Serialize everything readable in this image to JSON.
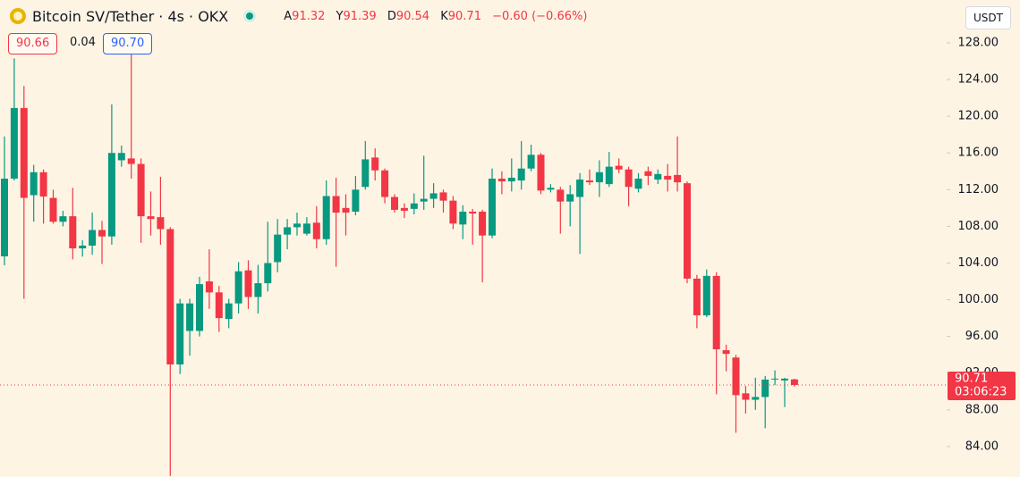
{
  "chart_data": {
    "type": "candlestick",
    "title": "Bitcoin SV/Tether · 4s · OKX",
    "ohlc_labels": [
      "A",
      "Y",
      "D",
      "K"
    ],
    "change": "−0.60 (−0.66%)",
    "sell_price": 90.66,
    "spread": 0.04,
    "buy_price": {
      "value": 90.7,
      "label": "90.70"
    },
    "currency": "USDT",
    "countdown": "03:06:23",
    "up_color": "#089981",
    "down_color": "#f23645",
    "last_price_line": true,
    "ylim": [
      80.68,
      132.67
    ],
    "yticks": [
      {
        "value": 84,
        "label": "84.00"
      },
      {
        "value": 88,
        "label": "88.00"
      },
      {
        "value": 92,
        "label": "92.00"
      },
      {
        "value": 96,
        "label": "96.00"
      },
      {
        "value": 100,
        "label": "100.00"
      },
      {
        "value": 104,
        "label": "104.00"
      },
      {
        "value": 108,
        "label": "108.00"
      },
      {
        "value": 112,
        "label": "112.00"
      },
      {
        "value": 116,
        "label": "116.00"
      },
      {
        "value": 120,
        "label": "120.00"
      },
      {
        "value": 124,
        "label": "124.00"
      },
      {
        "value": 128,
        "label": "128.00"
      }
    ],
    "open": [
      104.73,
      113.2,
      120.9,
      111.4,
      113.9,
      111.1,
      108.5,
      109.1,
      105.6,
      105.9,
      107.6,
      106.9,
      115.2,
      115.4,
      114.8,
      109.1,
      109,
      107.7,
      92.95,
      96.6,
      96.6,
      102,
      100.8,
      97.9,
      99.6,
      103.2,
      100.3,
      101.8,
      104.1,
      107.1,
      107.9,
      107.2,
      108.4,
      106.6,
      111.3,
      110,
      109.6,
      112.3,
      115.5,
      114.1,
      111.2,
      110,
      109.9,
      110.7,
      111,
      111.7,
      110.8,
      108.2,
      109.6,
      109.6,
      107,
      113.2,
      112.9,
      113,
      114.3,
      115.8,
      112,
      112,
      110.7,
      111.2,
      113,
      112.8,
      112.6,
      114.6,
      114.2,
      112.1,
      114,
      113.1,
      113.5,
      113.6,
      112.7,
      102.3,
      98.3,
      102.6,
      94.5,
      93.7,
      89.8,
      89.1,
      89.4,
      91.3,
      91.2,
      91.32
    ],
    "high": [
      117.8,
      126.3,
      123.3,
      114.7,
      114.2,
      112,
      109.7,
      112.2,
      106.5,
      109.5,
      108.6,
      121.3,
      116.8,
      127.1,
      115.4,
      111.8,
      113.4,
      107.9,
      100.1,
      100.1,
      102.5,
      105.5,
      101.5,
      100.1,
      104.1,
      104.3,
      103.8,
      108.5,
      108.8,
      108.8,
      109.5,
      109,
      110.2,
      113,
      113.3,
      111.5,
      113.5,
      117.3,
      116.5,
      114.3,
      111.5,
      110.5,
      111.6,
      115.7,
      112.7,
      112,
      111.3,
      110.3,
      109.9,
      109.8,
      114.3,
      114,
      115.4,
      117.3,
      116.9,
      116,
      112.6,
      112.3,
      112.5,
      113.8,
      114.2,
      115.2,
      116.1,
      115.4,
      114.5,
      113.8,
      114.5,
      114.2,
      114.8,
      117.8,
      112.9,
      102.7,
      103.3,
      103,
      95.1,
      94,
      90.6,
      91.5,
      91.7,
      92.3,
      91.5,
      91.39
    ],
    "low": [
      103.75,
      113,
      100.1,
      108.5,
      108.3,
      108.3,
      108,
      104.4,
      104.7,
      104.9,
      103.9,
      106,
      114.5,
      113.2,
      106.2,
      107,
      106,
      80.8,
      91.9,
      93.9,
      96,
      99,
      96.5,
      96.9,
      98.5,
      99,
      98.5,
      100.9,
      103,
      105.5,
      107,
      107,
      105.6,
      106,
      103.6,
      107,
      109.2,
      112,
      113,
      110.5,
      109.5,
      108.9,
      109.3,
      109.8,
      110,
      109.5,
      107.7,
      106.6,
      106,
      101.9,
      106.7,
      111.5,
      111.8,
      112,
      114,
      111.5,
      111.7,
      107.2,
      108,
      105,
      112.5,
      111.2,
      112.3,
      113.8,
      110.2,
      111.7,
      112.5,
      112.6,
      111.8,
      111.8,
      101.8,
      96.9,
      98.1,
      89.7,
      92.2,
      85.5,
      87.6,
      88,
      86,
      90.7,
      88.3,
      90.54
    ],
    "close": [
      113.2,
      120.9,
      111.1,
      113.9,
      111.25,
      108.5,
      109.1,
      105.6,
      105.9,
      107.6,
      106.9,
      116,
      116,
      114.8,
      109.1,
      108.8,
      107.7,
      92.95,
      99.6,
      99.6,
      101.7,
      100.8,
      98,
      99.6,
      103.1,
      100.3,
      101.8,
      104,
      107.1,
      107.9,
      108.3,
      108.3,
      106.6,
      111.3,
      109.5,
      109.5,
      112,
      115.3,
      114.1,
      111.2,
      109.8,
      109.7,
      110.5,
      111,
      111.6,
      110.8,
      108.3,
      109.6,
      109.4,
      107,
      113.2,
      112.9,
      113.3,
      114.3,
      115.8,
      111.9,
      112.2,
      110.7,
      111.5,
      113.1,
      112.8,
      113.9,
      114.5,
      114.2,
      112.3,
      113.2,
      113.5,
      113.7,
      113.1,
      112.8,
      102.3,
      98.3,
      102.6,
      94.6,
      94.1,
      89.6,
      89.1,
      89.4,
      91.3,
      91.4,
      91.4,
      90.71
    ]
  }
}
